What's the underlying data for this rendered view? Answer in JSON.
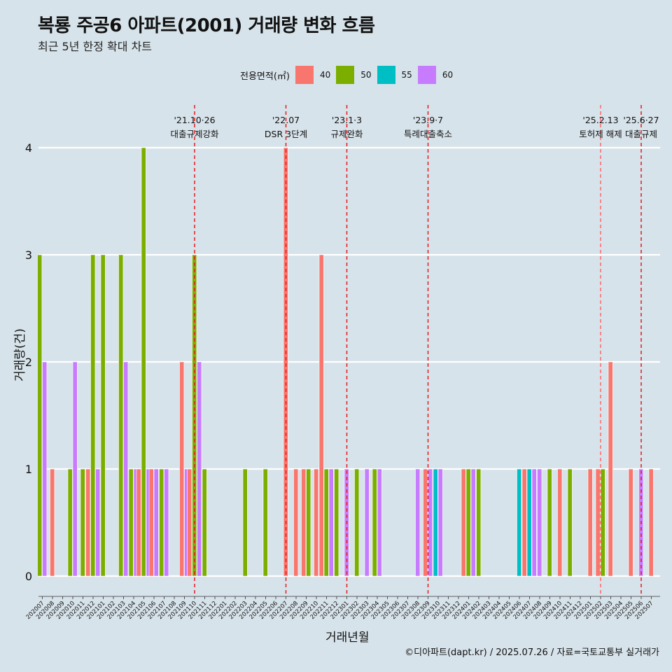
{
  "title": "복룡 주공6 아파트(2001) 거래량 변화 흐름",
  "subtitle": "최근 5년 한정 확대 차트",
  "caption": "©디아파트(dapt.kr) / 2025.07.26 / 자료=국토교통부 실거래가",
  "legend": {
    "title": "전용면적(㎡)",
    "items": [
      {
        "label": "40",
        "color": "#f8766d"
      },
      {
        "label": "50",
        "color": "#7cae00"
      },
      {
        "label": "55",
        "color": "#00bfc4"
      },
      {
        "label": "60",
        "color": "#c77cff"
      }
    ]
  },
  "chart_data": {
    "type": "bar",
    "xlabel": "거래년월",
    "ylabel": "거래량(건)",
    "ylim": [
      0,
      4
    ],
    "yticks": [
      0,
      1,
      2,
      3,
      4
    ],
    "grid": true,
    "legend_position": "top",
    "categories": [
      "202007",
      "202008",
      "202009",
      "202010",
      "202011",
      "202012",
      "202101",
      "202102",
      "202103",
      "202104",
      "202105",
      "202106",
      "202107",
      "202108",
      "202109",
      "202110",
      "202111",
      "202112",
      "202201",
      "202202",
      "202203",
      "202204",
      "202205",
      "202206",
      "202207",
      "202208",
      "202209",
      "202210",
      "202211",
      "202212",
      "202301",
      "202302",
      "202303",
      "202304",
      "202305",
      "202306",
      "202307",
      "202308",
      "202309",
      "202310",
      "202311",
      "202312",
      "202401",
      "202402",
      "202403",
      "202404",
      "202405",
      "202406",
      "202407",
      "202408",
      "202409",
      "202410",
      "202411",
      "202412",
      "202501",
      "202502",
      "202503",
      "202504",
      "202505",
      "202506",
      "202507"
    ],
    "series": [
      {
        "name": "40",
        "color": "#f8766d",
        "values": [
          0,
          1,
          0,
          0,
          0,
          1,
          0,
          0,
          0,
          0,
          1,
          1,
          0,
          0,
          2,
          1,
          0,
          0,
          0,
          0,
          0,
          0,
          0,
          0,
          4,
          1,
          1,
          1,
          3,
          0,
          0,
          0,
          0,
          0,
          0,
          0,
          0,
          0,
          1,
          0,
          0,
          0,
          1,
          0,
          0,
          0,
          0,
          0,
          1,
          0,
          0,
          1,
          0,
          0,
          1,
          1,
          2,
          0,
          1,
          0,
          1
        ]
      },
      {
        "name": "50",
        "color": "#7cae00",
        "values": [
          3,
          0,
          0,
          1,
          1,
          3,
          3,
          0,
          3,
          1,
          4,
          0,
          1,
          0,
          0,
          3,
          1,
          0,
          0,
          0,
          1,
          0,
          1,
          0,
          0,
          0,
          1,
          0,
          1,
          1,
          0,
          1,
          0,
          1,
          0,
          0,
          0,
          0,
          0,
          0,
          0,
          0,
          1,
          1,
          0,
          0,
          0,
          0,
          0,
          0,
          1,
          0,
          1,
          0,
          0,
          1,
          0,
          0,
          0,
          0,
          0
        ]
      },
      {
        "name": "55",
        "color": "#00bfc4",
        "values": [
          0,
          0,
          0,
          0,
          0,
          0,
          0,
          0,
          0,
          0,
          0,
          0,
          0,
          0,
          0,
          0,
          0,
          0,
          0,
          0,
          0,
          0,
          0,
          0,
          0,
          0,
          0,
          0,
          0,
          0,
          0,
          0,
          0,
          0,
          0,
          0,
          0,
          0,
          0,
          1,
          0,
          0,
          0,
          0,
          0,
          0,
          0,
          1,
          1,
          0,
          0,
          0,
          0,
          0,
          0,
          0,
          0,
          0,
          0,
          0,
          0
        ]
      },
      {
        "name": "60",
        "color": "#c77cff",
        "values": [
          2,
          0,
          0,
          2,
          0,
          1,
          0,
          0,
          2,
          1,
          1,
          1,
          1,
          0,
          1,
          2,
          0,
          0,
          0,
          0,
          0,
          0,
          0,
          0,
          0,
          0,
          0,
          0,
          1,
          0,
          1,
          0,
          1,
          1,
          0,
          0,
          0,
          1,
          1,
          1,
          0,
          0,
          1,
          0,
          0,
          0,
          0,
          0,
          1,
          1,
          0,
          0,
          0,
          0,
          0,
          0,
          0,
          0,
          0,
          1,
          0
        ]
      }
    ],
    "annotations": [
      {
        "category": "202110",
        "date": "'21.10·26",
        "label": "대출규제강화",
        "color": "#e31a1c"
      },
      {
        "category": "202207",
        "date": "'22.07",
        "label": "DSR 3단계",
        "color": "#e31a1c"
      },
      {
        "category": "202301",
        "date": "'23.1·3",
        "label": "규제완화",
        "color": "#e31a1c"
      },
      {
        "category": "202309",
        "date": "'23.9·7",
        "label": "특례대출축소",
        "color": "#e31a1c"
      },
      {
        "category": "202502",
        "date": "'25.2.13",
        "label": "토허제 해제",
        "color": "#ff6666"
      },
      {
        "category": "202506",
        "date": "'25.6·27",
        "label": "대출규제",
        "color": "#e31a1c"
      }
    ]
  }
}
